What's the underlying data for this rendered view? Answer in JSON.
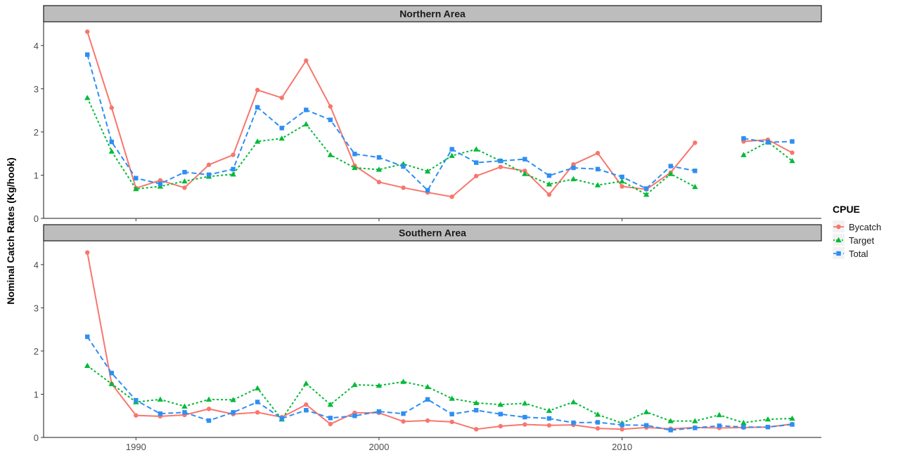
{
  "chart_data": {
    "type": "line",
    "ylabel": "Nominal Catch Rates (Kg/hook)",
    "xlabel": "",
    "xlim": [
      1986.2,
      2018.2
    ],
    "ylim": [
      0,
      4.55
    ],
    "x_ticks": [
      1990,
      2000,
      2010
    ],
    "x_tick_labels": [
      "1990",
      "2000",
      "2010"
    ],
    "y_ticks": [
      0,
      1,
      2,
      3,
      4
    ],
    "y_tick_labels": [
      "0",
      "1",
      "2",
      "3",
      "4"
    ],
    "grid": false,
    "legend": {
      "title": "CPUE",
      "position": "right",
      "entries": [
        "Bycatch",
        "Target",
        "Total"
      ]
    },
    "series_styles": [
      {
        "name": "Bycatch",
        "color": "#F8766D",
        "linestyle": "solid",
        "marker": "circle"
      },
      {
        "name": "Target",
        "color": "#00BA38",
        "linestyle": "dotted",
        "marker": "triangle"
      },
      {
        "name": "Total",
        "color": "#2E8EF2",
        "linestyle": "dashed",
        "marker": "square"
      }
    ],
    "panels": [
      {
        "title": "Northern Area",
        "series": [
          {
            "name": "Bycatch",
            "points": [
              [
                1988,
                4.32
              ],
              [
                1989,
                2.56
              ],
              [
                1990,
                0.7
              ],
              [
                1991,
                0.88
              ],
              [
                1992,
                0.71
              ],
              [
                1993,
                1.24
              ],
              [
                1994,
                1.47
              ],
              [
                1995,
                2.97
              ],
              [
                1996,
                2.79
              ],
              [
                1997,
                3.65
              ],
              [
                1998,
                2.59
              ],
              [
                1999,
                1.22
              ],
              [
                2000,
                0.84
              ],
              [
                2001,
                0.71
              ],
              [
                2002,
                0.6
              ],
              [
                2003,
                0.5
              ],
              [
                2004,
                0.98
              ],
              [
                2005,
                1.19
              ],
              [
                2006,
                1.1
              ],
              [
                2007,
                0.55
              ],
              [
                2008,
                1.25
              ],
              [
                2009,
                1.51
              ],
              [
                2010,
                0.74
              ],
              [
                2011,
                0.67
              ],
              [
                2012,
                1.06
              ],
              [
                2013,
                1.75
              ],
              [
                2014,
                null
              ],
              [
                2015,
                1.78
              ],
              [
                2016,
                1.82
              ],
              [
                2017,
                1.52
              ]
            ]
          },
          {
            "name": "Target",
            "points": [
              [
                1988,
                2.79
              ],
              [
                1989,
                1.55
              ],
              [
                1990,
                0.68
              ],
              [
                1991,
                0.74
              ],
              [
                1992,
                0.86
              ],
              [
                1993,
                0.97
              ],
              [
                1994,
                1.02
              ],
              [
                1995,
                1.78
              ],
              [
                1996,
                1.85
              ],
              [
                1997,
                2.18
              ],
              [
                1998,
                1.47
              ],
              [
                1999,
                1.17
              ],
              [
                2000,
                1.13
              ],
              [
                2001,
                1.26
              ],
              [
                2002,
                1.09
              ],
              [
                2003,
                1.45
              ],
              [
                2004,
                1.6
              ],
              [
                2005,
                1.33
              ],
              [
                2006,
                1.03
              ],
              [
                2007,
                0.79
              ],
              [
                2008,
                0.91
              ],
              [
                2009,
                0.77
              ],
              [
                2010,
                0.86
              ],
              [
                2011,
                0.55
              ],
              [
                2012,
                1.03
              ],
              [
                2013,
                0.73
              ],
              [
                2014,
                null
              ],
              [
                2015,
                1.47
              ],
              [
                2016,
                1.77
              ],
              [
                2017,
                1.33
              ]
            ]
          },
          {
            "name": "Total",
            "points": [
              [
                1988,
                3.79
              ],
              [
                1989,
                1.77
              ],
              [
                1990,
                0.93
              ],
              [
                1991,
                0.8
              ],
              [
                1992,
                1.07
              ],
              [
                1993,
                1.01
              ],
              [
                1994,
                1.14
              ],
              [
                1995,
                2.57
              ],
              [
                1996,
                2.09
              ],
              [
                1997,
                2.51
              ],
              [
                1998,
                2.28
              ],
              [
                1999,
                1.49
              ],
              [
                2000,
                1.41
              ],
              [
                2001,
                1.2
              ],
              [
                2002,
                0.65
              ],
              [
                2003,
                1.6
              ],
              [
                2004,
                1.29
              ],
              [
                2005,
                1.33
              ],
              [
                2006,
                1.37
              ],
              [
                2007,
                0.99
              ],
              [
                2008,
                1.17
              ],
              [
                2009,
                1.14
              ],
              [
                2010,
                0.96
              ],
              [
                2011,
                0.69
              ],
              [
                2012,
                1.21
              ],
              [
                2013,
                1.1
              ],
              [
                2014,
                null
              ],
              [
                2015,
                1.85
              ],
              [
                2016,
                1.76
              ],
              [
                2017,
                1.78
              ]
            ]
          }
        ]
      },
      {
        "title": "Southern Area",
        "series": [
          {
            "name": "Bycatch",
            "points": [
              [
                1988,
                4.28
              ],
              [
                1989,
                1.24
              ],
              [
                1990,
                0.51
              ],
              [
                1991,
                0.49
              ],
              [
                1992,
                0.52
              ],
              [
                1993,
                0.66
              ],
              [
                1994,
                0.54
              ],
              [
                1995,
                0.58
              ],
              [
                1996,
                0.47
              ],
              [
                1997,
                0.76
              ],
              [
                1998,
                0.31
              ],
              [
                1999,
                0.57
              ],
              [
                2000,
                0.57
              ],
              [
                2001,
                0.37
              ],
              [
                2002,
                0.39
              ],
              [
                2003,
                0.36
              ],
              [
                2004,
                0.19
              ],
              [
                2005,
                0.26
              ],
              [
                2006,
                0.3
              ],
              [
                2007,
                0.28
              ],
              [
                2008,
                0.29
              ],
              [
                2009,
                0.21
              ],
              [
                2010,
                0.19
              ],
              [
                2011,
                0.23
              ],
              [
                2012,
                0.2
              ],
              [
                2013,
                0.23
              ],
              [
                2014,
                0.22
              ],
              [
                2015,
                0.23
              ],
              [
                2016,
                0.24
              ],
              [
                2017,
                0.31
              ]
            ]
          },
          {
            "name": "Target",
            "points": [
              [
                1988,
                1.66
              ],
              [
                1989,
                1.24
              ],
              [
                1990,
                0.82
              ],
              [
                1991,
                0.88
              ],
              [
                1992,
                0.72
              ],
              [
                1993,
                0.88
              ],
              [
                1994,
                0.87
              ],
              [
                1995,
                1.14
              ],
              [
                1996,
                0.42
              ],
              [
                1997,
                1.25
              ],
              [
                1998,
                0.76
              ],
              [
                1999,
                1.22
              ],
              [
                2000,
                1.2
              ],
              [
                2001,
                1.29
              ],
              [
                2002,
                1.17
              ],
              [
                2003,
                0.9
              ],
              [
                2004,
                0.8
              ],
              [
                2005,
                0.76
              ],
              [
                2006,
                0.79
              ],
              [
                2007,
                0.62
              ],
              [
                2008,
                0.82
              ],
              [
                2009,
                0.53
              ],
              [
                2010,
                0.33
              ],
              [
                2011,
                0.59
              ],
              [
                2012,
                0.38
              ],
              [
                2013,
                0.38
              ],
              [
                2014,
                0.52
              ],
              [
                2015,
                0.34
              ],
              [
                2016,
                0.42
              ],
              [
                2017,
                0.44
              ]
            ]
          },
          {
            "name": "Total",
            "points": [
              [
                1988,
                2.33
              ],
              [
                1989,
                1.49
              ],
              [
                1990,
                0.86
              ],
              [
                1991,
                0.55
              ],
              [
                1992,
                0.58
              ],
              [
                1993,
                0.39
              ],
              [
                1994,
                0.58
              ],
              [
                1995,
                0.82
              ],
              [
                1996,
                0.44
              ],
              [
                1997,
                0.63
              ],
              [
                1998,
                0.45
              ],
              [
                1999,
                0.5
              ],
              [
                2000,
                0.6
              ],
              [
                2001,
                0.55
              ],
              [
                2002,
                0.88
              ],
              [
                2003,
                0.54
              ],
              [
                2004,
                0.63
              ],
              [
                2005,
                0.54
              ],
              [
                2006,
                0.47
              ],
              [
                2007,
                0.44
              ],
              [
                2008,
                0.34
              ],
              [
                2009,
                0.35
              ],
              [
                2010,
                0.29
              ],
              [
                2011,
                0.28
              ],
              [
                2012,
                0.17
              ],
              [
                2013,
                0.22
              ],
              [
                2014,
                0.27
              ],
              [
                2015,
                0.24
              ],
              [
                2016,
                0.24
              ],
              [
                2017,
                0.3
              ]
            ]
          }
        ]
      }
    ]
  }
}
